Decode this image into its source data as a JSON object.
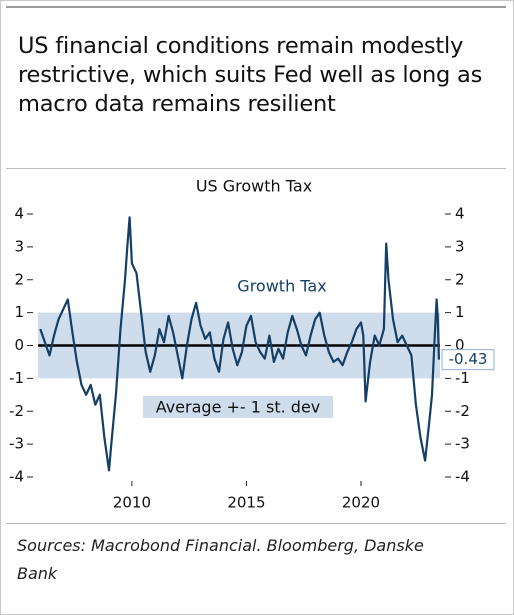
{
  "chart_data": {
    "type": "line",
    "title": "US financial conditions remain modestly restrictive, which suits Fed well as long as macro data remains resilient",
    "chart_title": "US Growth Tax",
    "source": "Sources: Macrobond Financial. Bloomberg, Danske Bank",
    "band": [
      -1,
      1
    ],
    "band_label": "Average +- 1 st. dev",
    "xlim": [
      2005.9,
      2023.45
    ],
    "xticks": [
      2010,
      2015,
      2020
    ],
    "ylim": [
      -4,
      4
    ],
    "yticks": [
      4,
      3,
      2,
      1,
      0,
      -1,
      -2,
      -3,
      -4
    ],
    "series": [
      {
        "name": "Growth Tax",
        "color": "#143f66",
        "x": [
          2006.0,
          2006.2,
          2006.4,
          2006.6,
          2006.8,
          2007.0,
          2007.2,
          2007.4,
          2007.6,
          2007.8,
          2008.0,
          2008.2,
          2008.4,
          2008.6,
          2008.8,
          2009.0,
          2009.1,
          2009.3,
          2009.5,
          2009.7,
          2009.8,
          2009.9,
          2010.0,
          2010.2,
          2010.4,
          2010.6,
          2010.8,
          2011.0,
          2011.2,
          2011.4,
          2011.6,
          2011.8,
          2012.0,
          2012.2,
          2012.4,
          2012.6,
          2012.8,
          2013.0,
          2013.2,
          2013.4,
          2013.6,
          2013.8,
          2014.0,
          2014.2,
          2014.4,
          2014.6,
          2014.8,
          2015.0,
          2015.2,
          2015.4,
          2015.6,
          2015.8,
          2016.0,
          2016.2,
          2016.4,
          2016.6,
          2016.8,
          2017.0,
          2017.2,
          2017.4,
          2017.6,
          2017.8,
          2018.0,
          2018.2,
          2018.4,
          2018.6,
          2018.8,
          2019.0,
          2019.2,
          2019.4,
          2019.6,
          2019.8,
          2020.0,
          2020.1,
          2020.2,
          2020.4,
          2020.6,
          2020.8,
          2021.0,
          2021.1,
          2021.2,
          2021.4,
          2021.6,
          2021.8,
          2022.0,
          2022.2,
          2022.4,
          2022.6,
          2022.8,
          2023.0,
          2023.1,
          2023.2,
          2023.3,
          2023.35,
          2023.4
        ],
        "values": [
          0.5,
          0.1,
          -0.3,
          0.3,
          0.8,
          1.1,
          1.4,
          0.4,
          -0.5,
          -1.2,
          -1.5,
          -1.2,
          -1.8,
          -1.5,
          -2.8,
          -3.8,
          -3.0,
          -1.5,
          0.5,
          2.0,
          3.0,
          3.9,
          2.5,
          2.2,
          1.0,
          -0.2,
          -0.8,
          -0.3,
          0.5,
          0.1,
          0.9,
          0.4,
          -0.3,
          -1.0,
          0.0,
          0.8,
          1.3,
          0.6,
          0.2,
          0.4,
          -0.4,
          -0.8,
          0.2,
          0.7,
          -0.1,
          -0.6,
          -0.2,
          0.6,
          0.9,
          0.1,
          -0.2,
          -0.4,
          0.3,
          -0.5,
          -0.1,
          -0.4,
          0.4,
          0.9,
          0.5,
          0.0,
          -0.3,
          0.3,
          0.8,
          1.0,
          0.3,
          -0.2,
          -0.5,
          -0.4,
          -0.6,
          -0.2,
          0.1,
          0.5,
          0.7,
          0.3,
          -1.7,
          -0.5,
          0.3,
          0.0,
          0.5,
          3.1,
          2.0,
          0.8,
          0.1,
          0.3,
          0.0,
          -0.3,
          -1.8,
          -2.8,
          -3.5,
          -2.2,
          -1.5,
          0.0,
          1.4,
          0.9,
          -0.43
        ]
      }
    ]
  }
}
